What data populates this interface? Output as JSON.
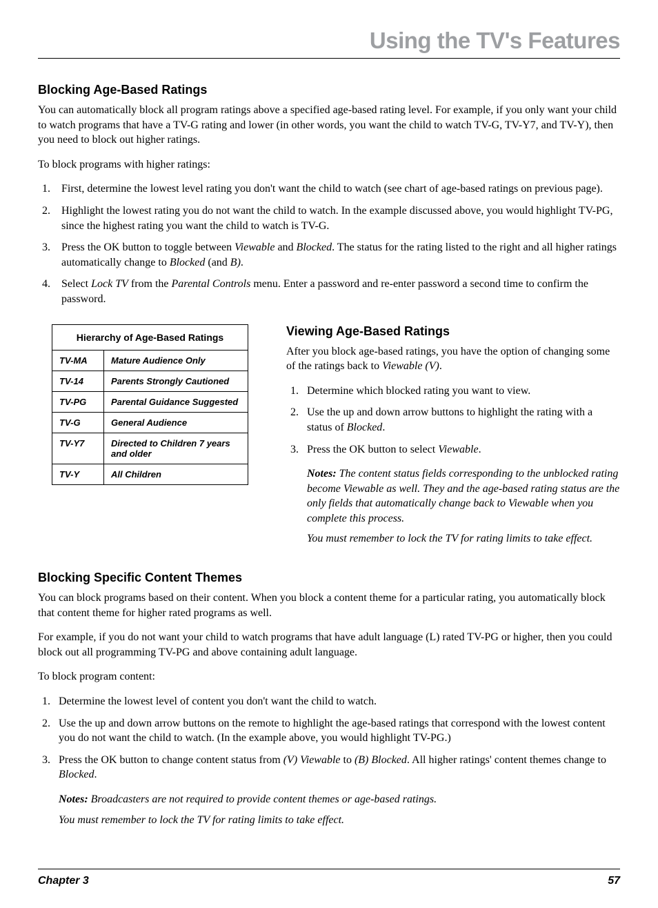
{
  "header": {
    "title": "Using the TV's Features"
  },
  "section1": {
    "heading": "Blocking Age-Based Ratings",
    "intro": "You can automatically block all program ratings above a specified age-based rating level. For example, if you only want your child to watch programs that have a TV-G rating and lower (in other words, you want the child to watch TV-G, TV-Y7, and TV-Y), then you need to block out higher ratings.",
    "lead": "To block programs with higher ratings:",
    "steps": {
      "s1": "First, determine the lowest level rating you don't want the child to watch (see chart of age-based ratings on previous page).",
      "s2": "Highlight the lowest rating you do not want the child to watch. In the example discussed above, you would highlight TV-PG, since the highest rating you want the child to watch is TV-G.",
      "s3a": "Press the OK button to toggle between ",
      "s3b": "Viewable",
      "s3c": " and ",
      "s3d": "Blocked",
      "s3e": ". The status for the rating listed to the right and all higher ratings automatically change to ",
      "s3f": "Blocked",
      "s3g": " (and ",
      "s3h": "B)",
      "s3i": ".",
      "s4a": "Select ",
      "s4b": "Lock TV",
      "s4c": " from the ",
      "s4d": "Parental Controls",
      "s4e": " menu. Enter a password and re-enter password a second time to confirm the password."
    }
  },
  "table": {
    "title": "Hierarchy of Age-Based Ratings",
    "rows": {
      "r1c": "TV-MA",
      "r1d": "Mature Audience Only",
      "r2c": "TV-14",
      "r2d": "Parents Strongly Cautioned",
      "r3c": "TV-PG",
      "r3d": "Parental Guidance Suggested",
      "r4c": "TV-G",
      "r4d": "General Audience",
      "r5c": "TV-Y7",
      "r5d": "Directed to Children 7 years and older",
      "r6c": "TV-Y",
      "r6d": "All Children"
    }
  },
  "section2": {
    "heading": "Viewing Age-Based Ratings",
    "intro_a": "After you block age-based ratings, you have the option of changing some of the ratings back to ",
    "intro_b": "Viewable (V)",
    "intro_c": ".",
    "steps": {
      "s1": "Determine which blocked rating you want to view.",
      "s2a": "Use the up and down arrow buttons to highlight the rating with a status of ",
      "s2b": "Blocked",
      "s2c": ".",
      "s3a": "Press the OK button to select ",
      "s3b": "Viewable",
      "s3c": "."
    },
    "notes": {
      "label": "Notes:",
      "n1": " The content status fields corresponding to the unblocked rating become Viewable as well. They and the age-based rating status are the only fields that automatically change back to Viewable when you complete this process.",
      "n2": "You must remember to lock the TV for rating limits to take effect."
    }
  },
  "section3": {
    "heading": "Blocking Specific Content Themes",
    "p1": "You can block programs based on their content. When you block a content theme for a particular rating, you automatically block that content theme for higher rated programs as well.",
    "p2": "For example, if you do not want your child to watch programs that have adult language (L) rated TV-PG or higher, then you could block out all programming TV-PG and above containing adult language.",
    "lead": "To block program content:",
    "steps": {
      "s1": "Determine the lowest level of content you don't want the child to watch.",
      "s2": "Use the up and down arrow buttons on the remote to highlight the age-based ratings that correspond with the lowest content you do not want the child to watch. (In the example above, you would highlight TV-PG.)",
      "s3a": "Press the OK button to change content status from ",
      "s3b": "(V) Viewable",
      "s3c": " to ",
      "s3d": "(B) Blocked",
      "s3e": ". All higher ratings' content themes change to ",
      "s3f": "Blocked",
      "s3g": "."
    },
    "notes": {
      "label": "Notes:",
      "n1": "  Broadcasters are not required to provide content themes or age-based ratings.",
      "n2": "You must remember to lock the TV for rating limits to take effect."
    }
  },
  "footer": {
    "chapter": "Chapter 3",
    "page": "57"
  }
}
